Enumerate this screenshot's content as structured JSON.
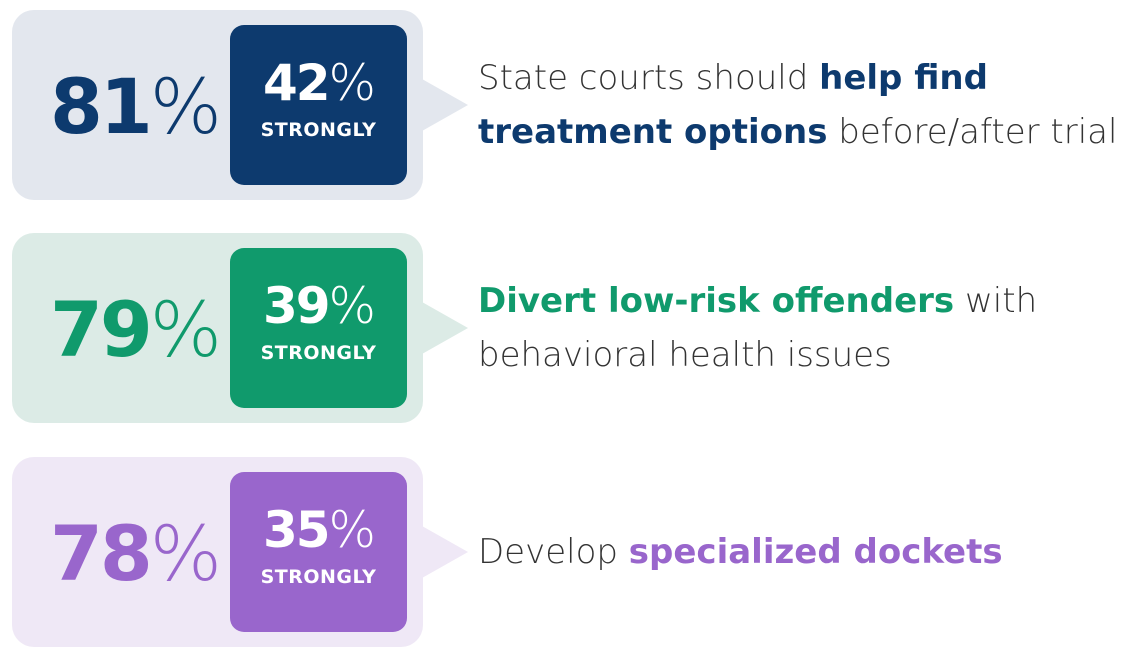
{
  "items": [
    {
      "total": "81%",
      "strongly": "42%",
      "strongly_label": "STRONGLY",
      "color": "#0d3a6e",
      "background": "#e3e7ee",
      "lines": [
        [
          {
            "t": "State courts should "
          },
          {
            "t": "help find",
            "bold": true
          }
        ],
        [
          {
            "t": "treatment options",
            "bold": true
          },
          {
            "t": " before/after trial"
          }
        ]
      ]
    },
    {
      "total": "79%",
      "strongly": "39%",
      "strongly_label": "STRONGLY",
      "color": "#109a6c",
      "background": "#dcebe6",
      "lines": [
        [
          {
            "t": "Divert low-risk offenders",
            "bold": true
          },
          {
            "t": " with"
          }
        ],
        [
          {
            "t": "behavioral health issues"
          }
        ]
      ]
    },
    {
      "total": "78%",
      "strongly": "35%",
      "strongly_label": "STRONGLY",
      "color": "#9966cc",
      "background": "#efe8f6",
      "lines": [
        [
          {
            "t": "Develop "
          },
          {
            "t": "specialized dockets",
            "bold": true
          }
        ]
      ]
    }
  ]
}
